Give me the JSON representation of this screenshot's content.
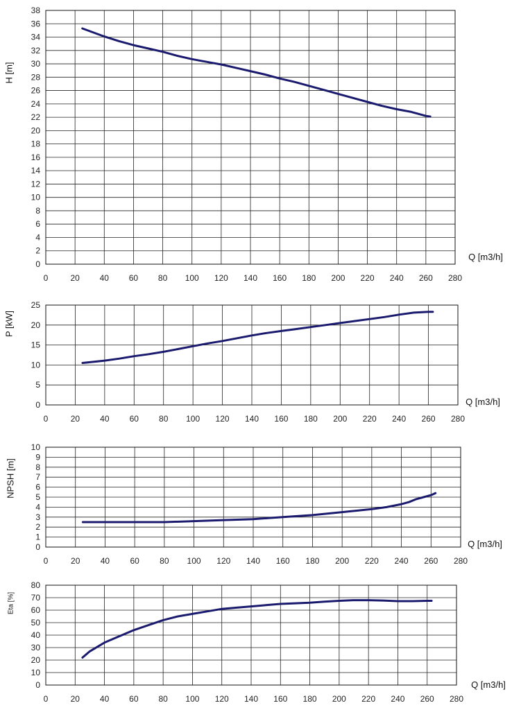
{
  "colors": {
    "curve": "#1a1a6e",
    "grid": "#222222"
  },
  "chart_data": [
    {
      "type": "line",
      "ylabel": "H [m]",
      "xlabel": "Q [m3/h]",
      "xlim": [
        0,
        280
      ],
      "xstep": 20,
      "ylim": [
        0,
        38
      ],
      "ystep": 2,
      "x": [
        25,
        30,
        40,
        50,
        60,
        70,
        80,
        90,
        100,
        110,
        120,
        130,
        140,
        150,
        160,
        170,
        180,
        190,
        200,
        210,
        220,
        230,
        240,
        250,
        260,
        263
      ],
      "series": [
        {
          "name": "H",
          "values": [
            35.3,
            34.9,
            34.1,
            33.4,
            32.8,
            32.3,
            31.8,
            31.2,
            30.7,
            30.3,
            29.9,
            29.4,
            28.9,
            28.4,
            27.8,
            27.3,
            26.7,
            26.1,
            25.5,
            24.9,
            24.3,
            23.7,
            23.2,
            22.8,
            22.2,
            22.1
          ]
        }
      ]
    },
    {
      "type": "line",
      "ylabel": "P [kW]",
      "xlabel": "Q [m3/h]",
      "xlim": [
        0,
        280
      ],
      "xstep": 20,
      "ylim": [
        0,
        25
      ],
      "ystep": 5,
      "x": [
        25,
        30,
        40,
        50,
        60,
        70,
        80,
        90,
        100,
        110,
        120,
        130,
        140,
        150,
        160,
        170,
        180,
        190,
        200,
        210,
        220,
        230,
        240,
        250,
        260,
        263
      ],
      "series": [
        {
          "name": "P",
          "values": [
            10.5,
            10.7,
            11.1,
            11.6,
            12.2,
            12.7,
            13.3,
            14.0,
            14.7,
            15.4,
            16.0,
            16.7,
            17.4,
            18.0,
            18.5,
            19.0,
            19.5,
            20.0,
            20.5,
            21.0,
            21.5,
            22.0,
            22.6,
            23.1,
            23.3,
            23.3
          ]
        }
      ]
    },
    {
      "type": "line",
      "ylabel": "NPSH [m]",
      "xlabel": "Q [m3/h]",
      "xlim": [
        0,
        280
      ],
      "xstep": 20,
      "ylim": [
        0,
        10
      ],
      "ystep": 1,
      "x": [
        25,
        40,
        60,
        80,
        100,
        120,
        140,
        160,
        180,
        200,
        220,
        230,
        240,
        245,
        250,
        255,
        260,
        263
      ],
      "series": [
        {
          "name": "NPSH",
          "values": [
            2.5,
            2.5,
            2.5,
            2.5,
            2.6,
            2.7,
            2.8,
            3.0,
            3.2,
            3.5,
            3.8,
            4.0,
            4.3,
            4.5,
            4.8,
            5.0,
            5.2,
            5.4
          ]
        }
      ]
    },
    {
      "type": "line",
      "ylabel": "Eta [%]",
      "xlabel": "Q [m3/h]",
      "xlim": [
        0,
        280
      ],
      "xstep": 20,
      "ylim": [
        0,
        80
      ],
      "ystep": 10,
      "x": [
        25,
        30,
        40,
        50,
        60,
        70,
        80,
        90,
        100,
        110,
        120,
        130,
        140,
        150,
        160,
        170,
        180,
        190,
        200,
        210,
        220,
        230,
        240,
        250,
        260,
        263
      ],
      "series": [
        {
          "name": "Eta",
          "values": [
            22,
            27,
            34,
            39,
            44,
            48,
            52,
            55,
            57,
            59,
            61,
            62,
            63,
            64,
            65,
            65.5,
            66,
            66.8,
            67.5,
            68,
            68,
            67.7,
            67.2,
            67.2,
            67.5,
            67.5
          ]
        }
      ]
    }
  ]
}
